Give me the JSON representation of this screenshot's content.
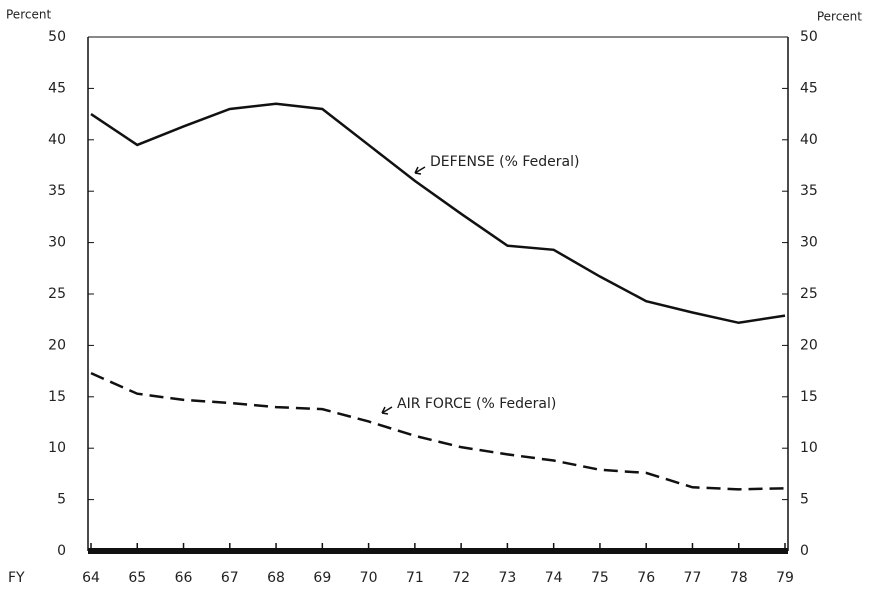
{
  "chart_data": {
    "type": "line",
    "y_label": "Percent",
    "y2_label": "Percent",
    "x_label": "FY",
    "categories": [
      "64",
      "65",
      "66",
      "67",
      "68",
      "69",
      "70",
      "71",
      "72",
      "73",
      "74",
      "75",
      "76",
      "77",
      "78",
      "79"
    ],
    "series": [
      {
        "name": "DEFENSE (% Federal)",
        "color": "#111111",
        "dash": "solid",
        "values": [
          42.5,
          39.5,
          41.3,
          43,
          43.5,
          43,
          39.5,
          36,
          32.8,
          29.7,
          29.3,
          26.7,
          24.3,
          23.2,
          22.2,
          22.9
        ]
      },
      {
        "name": "AIR FORCE (% Federal)",
        "color": "#111111",
        "dash": "dashed",
        "values": [
          17.3,
          15.3,
          14.7,
          14.4,
          14,
          13.8,
          12.6,
          11.2,
          10.1,
          9.4,
          8.8,
          7.9,
          7.6,
          6.2,
          6,
          6.1
        ]
      }
    ],
    "ylim": [
      0,
      50
    ],
    "yticks": [
      0,
      5,
      10,
      15,
      20,
      25,
      30,
      35,
      40,
      45,
      50
    ],
    "y2lim": [
      0,
      50
    ],
    "y2ticks": [
      0,
      5,
      10,
      15,
      20,
      25,
      30,
      35,
      40,
      45,
      50
    ]
  }
}
